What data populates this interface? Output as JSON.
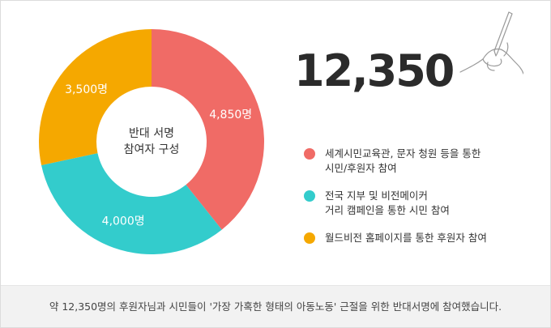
{
  "chart_data": {
    "type": "pie",
    "center_label_line1": "반대 서명",
    "center_label_line2": "참여자 구성",
    "slices": [
      {
        "label": "4,850명",
        "value": 4850,
        "color": "#f06b66"
      },
      {
        "label": "4,000명",
        "value": 4000,
        "color": "#33cccc"
      },
      {
        "label": "3,500명",
        "value": 3500,
        "color": "#f5a800"
      }
    ]
  },
  "total": "12,350",
  "legend": [
    {
      "text": "세계시민교육관, 문자 청원 등을 통한\n시민/후원자 참여",
      "color": "#f06b66"
    },
    {
      "text": "전국 지부 및 비전메이커\n거리 캠페인을 통한 시민 참여",
      "color": "#33cccc"
    },
    {
      "text": "월드비전 홈페이지를 통한 후원자 참여",
      "color": "#f5a800"
    }
  ],
  "footer": "약 12,350명의 후원자님과 시민들이 '가장 가혹한 형태의 아동노동' 근절을 위한 반대서명에 참여했습니다."
}
